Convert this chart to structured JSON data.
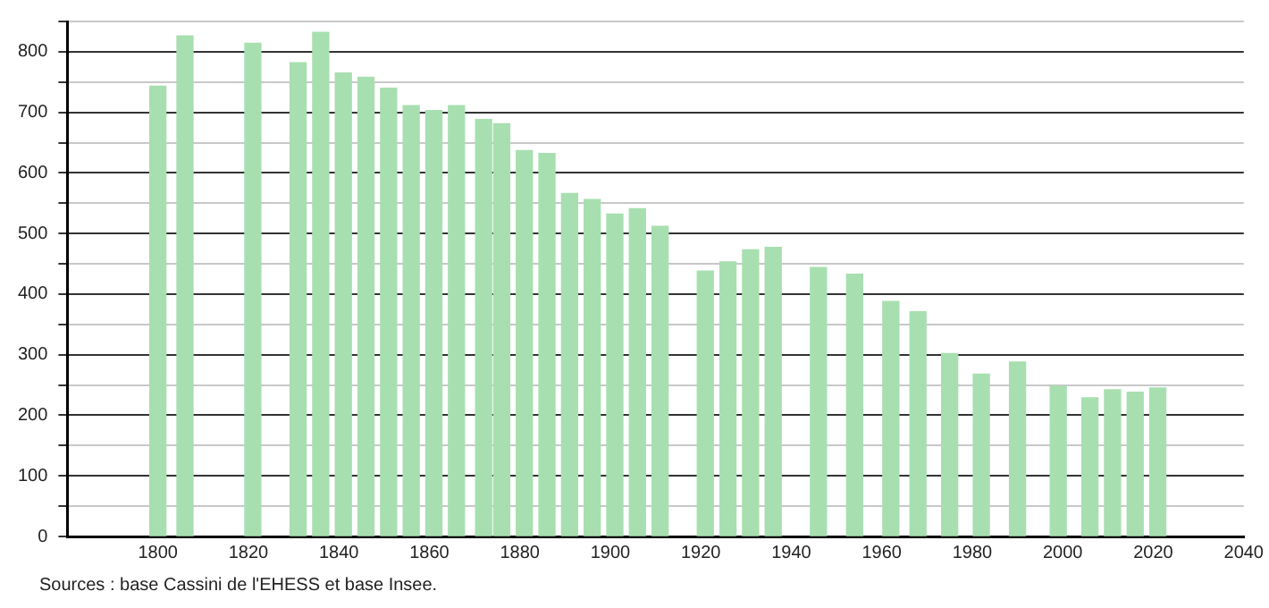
{
  "chart_data": {
    "type": "bar",
    "x": [
      1800,
      1806,
      1821,
      1831,
      1836,
      1841,
      1846,
      1851,
      1856,
      1861,
      1866,
      1872,
      1876,
      1881,
      1886,
      1891,
      1896,
      1901,
      1906,
      1911,
      1921,
      1926,
      1931,
      1936,
      1946,
      1954,
      1962,
      1968,
      1975,
      1982,
      1990,
      1999,
      2006,
      2011,
      2016,
      2021
    ],
    "values": [
      743,
      826,
      814,
      782,
      832,
      765,
      758,
      740,
      711,
      703,
      711,
      688,
      681,
      637,
      632,
      566,
      556,
      532,
      541,
      512,
      438,
      453,
      473,
      477,
      444,
      433,
      388,
      371,
      302,
      268,
      288,
      248,
      229,
      242,
      238,
      245
    ],
    "color": "#a8dfb0",
    "xlim": [
      1780,
      2040
    ],
    "xticks": [
      1800,
      1820,
      1840,
      1860,
      1880,
      1900,
      1920,
      1940,
      1960,
      1980,
      2000,
      2020,
      2040
    ],
    "ylim": [
      0,
      850
    ],
    "yticks": [
      0,
      {
        "value": 50,
        "label": null
      },
      100,
      {
        "value": 150,
        "label": null
      },
      200,
      {
        "value": 250,
        "label": null
      },
      300,
      {
        "value": 350,
        "label": null
      },
      400,
      {
        "value": 450,
        "label": null
      },
      500,
      {
        "value": 550,
        "label": null
      },
      600,
      {
        "value": 650,
        "label": null
      },
      700,
      {
        "value": 750,
        "label": null
      },
      800,
      {
        "value": 850,
        "label": null
      }
    ],
    "grid": "y",
    "legend": false,
    "annotations": [
      "Sources : base Cassini de l'EHESS et base Insee."
    ]
  }
}
